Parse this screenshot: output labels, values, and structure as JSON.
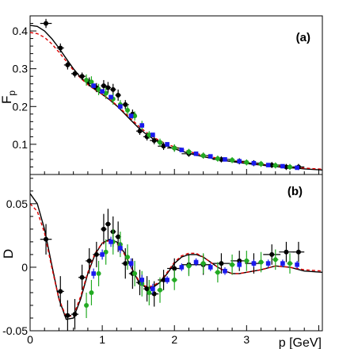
{
  "chart_data": [
    {
      "type": "scatter",
      "panel_label": "(a)",
      "ylabel": "F",
      "ylabel_sub": "p",
      "xlabel": "",
      "xlim": [
        0,
        4.05
      ],
      "ylim": [
        0.02,
        0.44
      ],
      "x_ticks": [
        0,
        1,
        2,
        3
      ],
      "y_ticks": [
        0.1,
        0.2,
        0.3,
        0.4
      ],
      "y_tick_labels": [
        "0.1",
        "0.2",
        "0.3",
        "0.4"
      ],
      "grid": false,
      "legend": "none",
      "series": [
        {
          "color": "#000000",
          "marker": "circle",
          "x": [
            0.22,
            0.42,
            0.52,
            0.62,
            0.72,
            0.82,
            0.92,
            1.02,
            1.08,
            1.15,
            1.22,
            1.32,
            1.42,
            1.52,
            1.62,
            1.72,
            1.85,
            2.0,
            2.2,
            2.4,
            2.65,
            2.9,
            3.1,
            3.35,
            3.55,
            3.72
          ],
          "y": [
            0.42,
            0.355,
            0.31,
            0.287,
            0.28,
            0.265,
            0.25,
            0.255,
            0.25,
            0.245,
            0.23,
            0.205,
            0.18,
            0.135,
            0.12,
            0.11,
            0.095,
            0.09,
            0.075,
            0.07,
            0.06,
            0.055,
            0.05,
            0.045,
            0.04,
            0.04
          ],
          "yerr": [
            0.012,
            0.012,
            0.012,
            0.01,
            0.01,
            0.012,
            0.012,
            0.015,
            0.015,
            0.015,
            0.015,
            0.012,
            0.012,
            0.01,
            0.01,
            0.01,
            0.01,
            0.008,
            0.008,
            0.008,
            0.008,
            0.008,
            0.008,
            0.008,
            0.008,
            0.008
          ],
          "xerr": [
            0.08,
            0.05,
            0.05,
            0.05,
            0.05,
            0.05,
            0.05,
            0.04,
            0.04,
            0.04,
            0.04,
            0.05,
            0.05,
            0.05,
            0.05,
            0.06,
            0.08,
            0.1,
            0.1,
            0.1,
            0.12,
            0.12,
            0.12,
            0.12,
            0.1,
            0.08
          ]
        },
        {
          "color": "#22aa22",
          "marker": "circle",
          "x": [
            0.78,
            0.85,
            0.95,
            1.05,
            1.15,
            1.25,
            1.35,
            1.45,
            1.55,
            1.65,
            1.8,
            2.0,
            2.2,
            2.4,
            2.6,
            2.8,
            3.0,
            3.2,
            3.4,
            3.6
          ],
          "y": [
            0.27,
            0.265,
            0.245,
            0.235,
            0.22,
            0.205,
            0.19,
            0.175,
            0.15,
            0.125,
            0.105,
            0.09,
            0.08,
            0.07,
            0.062,
            0.058,
            0.052,
            0.048,
            0.044,
            0.04
          ],
          "yerr": [
            0.015,
            0.015,
            0.015,
            0.015,
            0.015,
            0.012,
            0.012,
            0.012,
            0.012,
            0.01,
            0.01,
            0.01,
            0.008,
            0.008,
            0.008,
            0.008,
            0.008,
            0.008,
            0.008,
            0.008
          ],
          "xerr": [
            0.03,
            0.03,
            0.03,
            0.03,
            0.03,
            0.03,
            0.03,
            0.03,
            0.03,
            0.03,
            0.04,
            0.04,
            0.04,
            0.04,
            0.04,
            0.04,
            0.04,
            0.04,
            0.04,
            0.04
          ]
        },
        {
          "color": "#1a1aee",
          "marker": "square",
          "x": [
            0.88,
            1.0,
            1.12,
            1.25,
            1.4,
            1.55,
            1.7,
            1.9,
            2.1,
            2.3,
            2.5,
            2.7,
            2.9,
            3.1,
            3.3,
            3.5,
            3.7
          ],
          "y": [
            0.255,
            0.24,
            0.225,
            0.2,
            0.175,
            0.15,
            0.125,
            0.1,
            0.085,
            0.075,
            0.068,
            0.06,
            0.055,
            0.05,
            0.045,
            0.042,
            0.038
          ],
          "yerr": [
            0.006,
            0.006,
            0.006,
            0.006,
            0.005,
            0.005,
            0.005,
            0.004,
            0.004,
            0.004,
            0.004,
            0.004,
            0.004,
            0.004,
            0.004,
            0.004,
            0.004
          ],
          "xerr": [
            0.03,
            0.03,
            0.03,
            0.03,
            0.03,
            0.03,
            0.03,
            0.03,
            0.03,
            0.03,
            0.03,
            0.03,
            0.03,
            0.03,
            0.03,
            0.03,
            0.03
          ]
        },
        {
          "color": "#000000",
          "type": "line",
          "x": [
            0.0,
            0.1,
            0.2,
            0.3,
            0.4,
            0.5,
            0.6,
            0.7,
            0.8,
            0.9,
            1.0,
            1.1,
            1.2,
            1.3,
            1.4,
            1.5,
            1.6,
            1.7,
            1.8,
            1.9,
            2.0,
            2.2,
            2.4,
            2.6,
            2.8,
            3.0,
            3.2,
            3.4,
            3.6,
            3.8,
            4.05
          ],
          "y": [
            0.415,
            0.412,
            0.4,
            0.38,
            0.355,
            0.327,
            0.3,
            0.277,
            0.26,
            0.245,
            0.232,
            0.218,
            0.202,
            0.183,
            0.163,
            0.144,
            0.128,
            0.115,
            0.104,
            0.095,
            0.088,
            0.076,
            0.067,
            0.06,
            0.054,
            0.049,
            0.045,
            0.041,
            0.038,
            0.035,
            0.032
          ]
        },
        {
          "color": "#dd0000",
          "type": "line",
          "dash": "dashed",
          "x": [
            0.0,
            0.1,
            0.2,
            0.3,
            0.4,
            0.5,
            0.6,
            0.7,
            0.8,
            0.9,
            1.0,
            1.1,
            1.2,
            1.3,
            1.4,
            1.5,
            1.6,
            1.7,
            1.8,
            1.9,
            2.0,
            2.2,
            2.4,
            2.6,
            2.8,
            3.0,
            3.2,
            3.4,
            3.6,
            3.8,
            4.05
          ],
          "y": [
            0.396,
            0.393,
            0.383,
            0.366,
            0.344,
            0.32,
            0.296,
            0.275,
            0.258,
            0.244,
            0.232,
            0.219,
            0.204,
            0.186,
            0.167,
            0.149,
            0.133,
            0.12,
            0.109,
            0.1,
            0.093,
            0.081,
            0.071,
            0.063,
            0.057,
            0.052,
            0.047,
            0.043,
            0.04,
            0.037,
            0.034
          ]
        }
      ]
    },
    {
      "type": "scatter",
      "panel_label": "(b)",
      "ylabel": "D",
      "xlabel": "p [GeV]",
      "xlim": [
        0,
        4.05
      ],
      "ylim": [
        -0.05,
        0.073
      ],
      "x_ticks": [
        0,
        1,
        2,
        3
      ],
      "x_tick_labels": [
        "0",
        "1",
        "2",
        "3"
      ],
      "y_ticks": [
        -0.05,
        0,
        0.05
      ],
      "y_tick_labels": [
        "-0.05",
        "0",
        "0.05"
      ],
      "grid": false,
      "legend": "none",
      "series": [
        {
          "color": "#000000",
          "marker": "circle",
          "x": [
            0.22,
            0.42,
            0.52,
            0.62,
            0.72,
            0.82,
            0.92,
            1.02,
            1.08,
            1.15,
            1.22,
            1.32,
            1.42,
            1.52,
            1.62,
            1.72,
            1.85,
            2.0,
            2.2,
            2.4,
            2.65,
            2.9,
            3.1,
            3.35,
            3.55,
            3.72
          ],
          "y": [
            0.022,
            -0.019,
            -0.038,
            -0.037,
            -0.008,
            0.005,
            0.01,
            0.03,
            0.034,
            0.028,
            0.024,
            0.003,
            -0.005,
            -0.012,
            -0.017,
            -0.021,
            -0.01,
            -0.001,
            0.002,
            0.002,
            0.003,
            0.005,
            0.003,
            0.01,
            0.012,
            0.012
          ],
          "yerr": [
            0.012,
            0.012,
            0.012,
            0.012,
            0.01,
            0.01,
            0.01,
            0.012,
            0.012,
            0.012,
            0.012,
            0.012,
            0.012,
            0.01,
            0.01,
            0.01,
            0.008,
            0.008,
            0.008,
            0.008,
            0.008,
            0.008,
            0.008,
            0.008,
            0.008,
            0.008
          ],
          "xerr": [
            0.08,
            0.05,
            0.05,
            0.05,
            0.05,
            0.05,
            0.05,
            0.04,
            0.04,
            0.04,
            0.04,
            0.05,
            0.05,
            0.05,
            0.05,
            0.06,
            0.08,
            0.1,
            0.1,
            0.1,
            0.12,
            0.12,
            0.12,
            0.12,
            0.1,
            0.08
          ]
        },
        {
          "color": "#22aa22",
          "marker": "circle",
          "x": [
            0.78,
            0.85,
            0.95,
            1.05,
            1.15,
            1.25,
            1.35,
            1.45,
            1.55,
            1.65,
            1.8,
            2.0,
            2.2,
            2.4,
            2.6,
            2.8,
            3.0,
            3.2,
            3.4,
            3.6
          ],
          "y": [
            -0.03,
            -0.02,
            -0.005,
            0.012,
            0.02,
            0.018,
            0.008,
            -0.005,
            -0.013,
            -0.02,
            -0.018,
            -0.01,
            0.001,
            0.003,
            -0.004,
            0.002,
            0.005,
            0.004,
            0.006,
            0.003
          ],
          "yerr": [
            0.01,
            0.01,
            0.01,
            0.01,
            0.01,
            0.01,
            0.01,
            0.01,
            0.01,
            0.01,
            0.01,
            0.008,
            0.008,
            0.008,
            0.008,
            0.008,
            0.008,
            0.008,
            0.008,
            0.008
          ],
          "xerr": [
            0.03,
            0.03,
            0.03,
            0.03,
            0.03,
            0.03,
            0.03,
            0.03,
            0.03,
            0.03,
            0.04,
            0.04,
            0.04,
            0.04,
            0.04,
            0.04,
            0.04,
            0.04,
            0.04,
            0.04
          ]
        },
        {
          "color": "#1a1aee",
          "marker": "square",
          "x": [
            0.88,
            1.0,
            1.12,
            1.25,
            1.4,
            1.55,
            1.7,
            1.9,
            2.1,
            2.3,
            2.5,
            2.7,
            2.9,
            3.1,
            3.3,
            3.5,
            3.7
          ],
          "y": [
            -0.005,
            0.01,
            0.02,
            0.015,
            0.003,
            -0.01,
            -0.017,
            -0.01,
            0.0,
            0.004,
            0.0,
            -0.003,
            0.002,
            0.003,
            0.003,
            0.003,
            0.002
          ],
          "yerr": [
            0.004,
            0.004,
            0.004,
            0.004,
            0.004,
            0.004,
            0.004,
            0.003,
            0.003,
            0.003,
            0.003,
            0.003,
            0.003,
            0.003,
            0.003,
            0.003,
            0.003
          ],
          "xerr": [
            0.03,
            0.03,
            0.03,
            0.03,
            0.03,
            0.03,
            0.03,
            0.03,
            0.03,
            0.03,
            0.03,
            0.03,
            0.03,
            0.03,
            0.03,
            0.03,
            0.03
          ]
        },
        {
          "color": "#000000",
          "type": "line",
          "x": [
            0.0,
            0.1,
            0.2,
            0.3,
            0.4,
            0.5,
            0.6,
            0.7,
            0.8,
            0.9,
            1.0,
            1.1,
            1.2,
            1.3,
            1.4,
            1.5,
            1.6,
            1.7,
            1.8,
            1.9,
            2.0,
            2.1,
            2.2,
            2.3,
            2.4,
            2.5,
            2.6,
            2.7,
            2.8,
            2.9,
            3.0,
            3.2,
            3.4,
            3.6,
            3.8,
            4.05
          ],
          "y": [
            0.058,
            0.05,
            0.03,
            0.002,
            -0.025,
            -0.041,
            -0.04,
            -0.025,
            -0.005,
            0.01,
            0.019,
            0.022,
            0.02,
            0.012,
            0.0,
            -0.011,
            -0.016,
            -0.016,
            -0.012,
            -0.005,
            0.003,
            0.008,
            0.01,
            0.01,
            0.008,
            0.004,
            0.0,
            -0.003,
            -0.005,
            -0.005,
            -0.004,
            -0.002,
            0.001,
            0.0,
            -0.003,
            -0.004
          ]
        },
        {
          "color": "#dd0000",
          "type": "line",
          "dash": "dashed",
          "x": [
            0.0,
            0.1,
            0.2,
            0.3,
            0.4,
            0.5,
            0.6,
            0.7,
            0.8,
            0.9,
            1.0,
            1.1,
            1.2,
            1.3,
            1.4,
            1.5,
            1.6,
            1.7,
            1.8,
            1.9,
            2.0,
            2.1,
            2.2,
            2.3,
            2.4,
            2.5,
            2.6,
            2.7,
            2.8,
            2.9,
            3.0,
            3.2,
            3.4,
            3.6,
            3.8,
            4.05
          ],
          "y": [
            0.05,
            0.044,
            0.027,
            0.0,
            -0.025,
            -0.039,
            -0.038,
            -0.023,
            -0.004,
            0.011,
            0.019,
            0.021,
            0.019,
            0.011,
            0.0,
            -0.01,
            -0.015,
            -0.015,
            -0.011,
            -0.004,
            0.004,
            0.009,
            0.011,
            0.011,
            0.008,
            0.004,
            0.0,
            -0.003,
            -0.005,
            -0.005,
            -0.004,
            -0.002,
            0.001,
            0.0,
            -0.002,
            -0.003
          ]
        }
      ]
    }
  ]
}
